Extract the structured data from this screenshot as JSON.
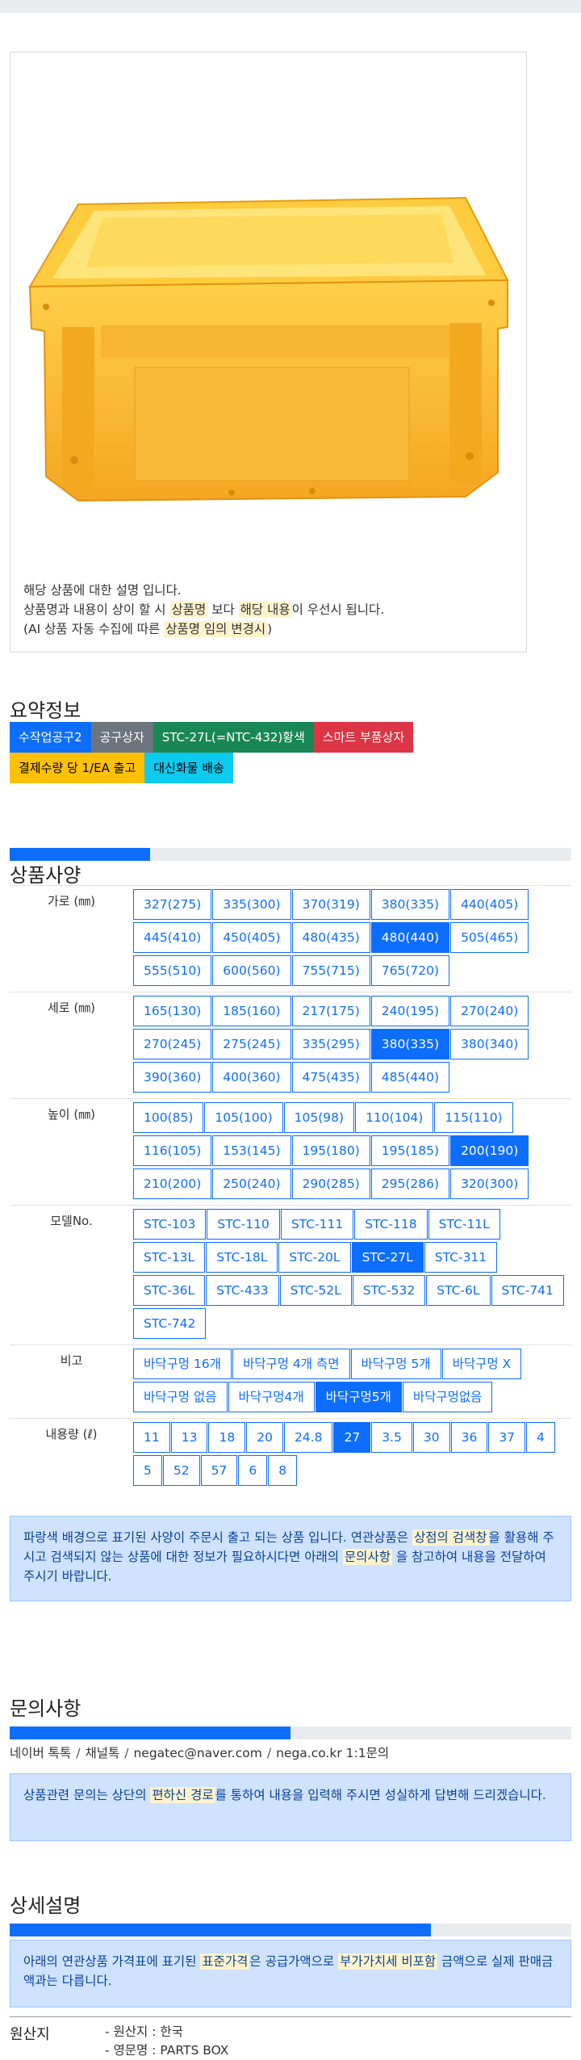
{
  "description": {
    "line1": "해당 상품에 대한 설명 입니다.",
    "line2_a": "상품명과 내용이 상이 할 시 ",
    "line2_hl1": "상품명",
    "line2_b": " 보다 ",
    "line2_hl2": "해당 내용",
    "line2_c": "이 우선시 됩니다.",
    "line3_a": "(AI 상품 자동 수집에 따른 ",
    "line3_hl": "상품명 임의 변경시",
    "line3_b": ")"
  },
  "summary": {
    "title": "요약정보",
    "tags": [
      {
        "label": "수작업공구2",
        "color": "#0d6efd"
      },
      {
        "label": "공구상자",
        "color": "#6c757d"
      },
      {
        "label": "STC-27L(=NTC-432)황색",
        "color": "#198754"
      },
      {
        "label": "스마트 부품상자",
        "color": "#dc3545"
      },
      {
        "label": "결제수량 당 1/EA 출고",
        "color": "#ffc107",
        "text_color": "#000"
      },
      {
        "label": "대신화물 배송",
        "color": "#0dcaf0",
        "text_color": "#000"
      }
    ]
  },
  "spec": {
    "title": "상품사양",
    "progress": 0.25,
    "rows": [
      {
        "label": "가로 (㎜)",
        "options": [
          "327(275)",
          "335(300)",
          "370(319)",
          "380(335)",
          "440(405)",
          "445(410)",
          "450(405)",
          "480(435)",
          "480(440)",
          "505(465)",
          "555(510)",
          "600(560)",
          "755(715)",
          "765(720)"
        ],
        "active": "480(440)"
      },
      {
        "label": "세로 (㎜)",
        "options": [
          "165(130)",
          "185(160)",
          "217(175)",
          "240(195)",
          "270(240)",
          "270(245)",
          "275(245)",
          "335(295)",
          "380(335)",
          "380(340)",
          "390(360)",
          "400(360)",
          "475(435)",
          "485(440)"
        ],
        "active": "380(335)"
      },
      {
        "label": "높이 (㎜)",
        "options": [
          "100(85)",
          "105(100)",
          "105(98)",
          "110(104)",
          "115(110)",
          "116(105)",
          "153(145)",
          "195(180)",
          "195(185)",
          "200(190)",
          "210(200)",
          "250(240)",
          "290(285)",
          "295(286)",
          "320(300)"
        ],
        "active": "200(190)"
      },
      {
        "label": "모델No.",
        "options": [
          "STC-103",
          "STC-110",
          "STC-111",
          "STC-118",
          "STC-11L",
          "STC-13L",
          "STC-18L",
          "STC-20L",
          "STC-27L",
          "STC-311",
          "STC-36L",
          "STC-433",
          "STC-52L",
          "STC-532",
          "STC-6L",
          "STC-741",
          "STC-742"
        ],
        "active": "STC-27L"
      },
      {
        "label": "비고",
        "options": [
          "바닥구멍 16개",
          "바닥구멍 4개 측면",
          "바닥구멍 5개",
          "바닥구멍 X",
          "바닥구멍 없음",
          "바닥구멍4개",
          "바닥구멍5개",
          "바닥구멍없음"
        ],
        "active": "바닥구멍5개"
      },
      {
        "label": "내용량 (ℓ)",
        "options": [
          "11",
          "13",
          "18",
          "20",
          "24.8",
          "27",
          "3.5",
          "30",
          "36",
          "37",
          "4",
          "5",
          "52",
          "57",
          "6",
          "8"
        ],
        "active": "27"
      }
    ],
    "notice_a": "파랑색 배경으로 표기된 사양이 주문시 출고 되는 상품 입니다. 연관상품은 ",
    "notice_hl1": "상점의 검색창",
    "notice_b": "을 활용해 주시고 검색되지 않는 상품에 대한 정보가 필요하시다면 아래의 ",
    "notice_hl2": "문의사항",
    "notice_c": " 을 참고하여 내용을 전달하여 주시기 바랍니다."
  },
  "inquiry": {
    "title": "문의사항",
    "progress": 0.5,
    "contacts": [
      "네이버 톡톡",
      "채널톡",
      "negatec@naver.com",
      "nega.co.kr 1:1문의"
    ],
    "notice_a": "상품관련 문의는 상단의 ",
    "notice_hl": "편하신 경로",
    "notice_b": "를 통하여 내용을 입력해 주시면 성실하게 답변해 드리겠습니다."
  },
  "detail": {
    "title": "상세설명",
    "progress": 0.75,
    "notice_a": "아래의 연관상품 가격표에 표기된 ",
    "notice_hl1": "표준가격",
    "notice_b": "은 공급가액으로 ",
    "notice_hl2": "부가가치세 비포함",
    "notice_c": " 금액으로 실제 판매금액과는 다릅니다."
  },
  "origin": {
    "label": "원산지",
    "lines": [
      "- 원산지 : 한국",
      "- 영문명 : PARTS BOX"
    ]
  }
}
